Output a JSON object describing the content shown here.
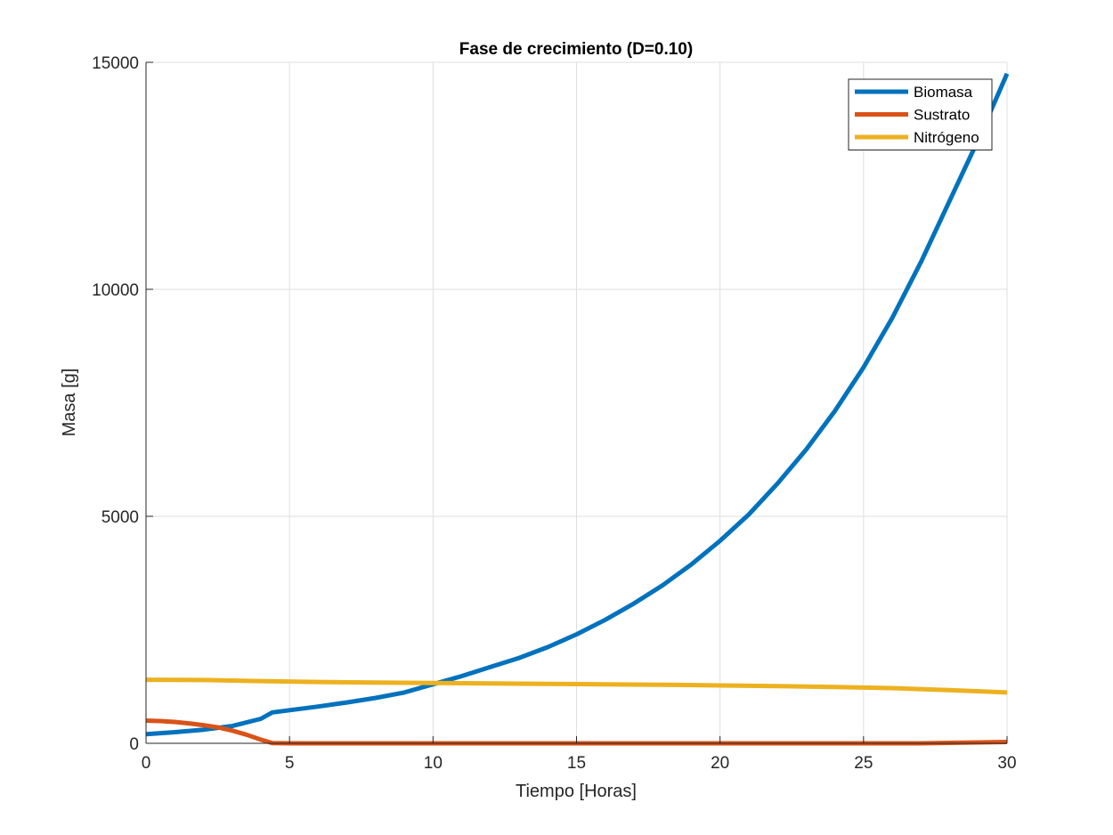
{
  "chart_data": {
    "type": "line",
    "title": "Fase de crecimiento (D=0.10)",
    "xlabel": "Tiempo [Horas]",
    "ylabel": "Masa [g]",
    "xlim": [
      0,
      30
    ],
    "ylim": [
      0,
      15000
    ],
    "xticks": [
      0,
      5,
      10,
      15,
      20,
      25,
      30
    ],
    "yticks": [
      0,
      5000,
      10000,
      15000
    ],
    "grid": true,
    "legend_position": "top-right",
    "series": [
      {
        "name": "Biomasa",
        "color": "#0072BD",
        "x": [
          0,
          1,
          2,
          3,
          4,
          4.4,
          5,
          6,
          7,
          8,
          9,
          10,
          11,
          12,
          13,
          14,
          15,
          16,
          17,
          18,
          19,
          20,
          21,
          22,
          23,
          24,
          25,
          26,
          27,
          28,
          29,
          30
        ],
        "y": [
          200,
          245,
          300,
          380,
          540,
          680,
          730,
          810,
          900,
          1000,
          1120,
          1300,
          1480,
          1680,
          1880,
          2120,
          2400,
          2720,
          3080,
          3480,
          3940,
          4460,
          5040,
          5720,
          6470,
          7320,
          8280,
          9370,
          10600,
          11950,
          13300,
          14750
        ]
      },
      {
        "name": "Sustrato",
        "color": "#D95319",
        "x": [
          0,
          0.5,
          1,
          1.5,
          2,
          2.5,
          3,
          3.5,
          4,
          4.4,
          5,
          10,
          15,
          20,
          25,
          27,
          28,
          29,
          30
        ],
        "y": [
          500,
          490,
          470,
          440,
          400,
          350,
          280,
          190,
          80,
          5,
          0,
          0,
          0,
          0,
          0,
          0,
          10,
          20,
          30
        ]
      },
      {
        "name": "Nitrógeno",
        "color": "#EDB120",
        "x": [
          0,
          2,
          4,
          6,
          8,
          10,
          12,
          14,
          16,
          18,
          20,
          22,
          24,
          26,
          28,
          30
        ],
        "y": [
          1400,
          1395,
          1370,
          1350,
          1340,
          1330,
          1320,
          1310,
          1300,
          1290,
          1275,
          1260,
          1240,
          1215,
          1170,
          1120
        ]
      }
    ]
  }
}
